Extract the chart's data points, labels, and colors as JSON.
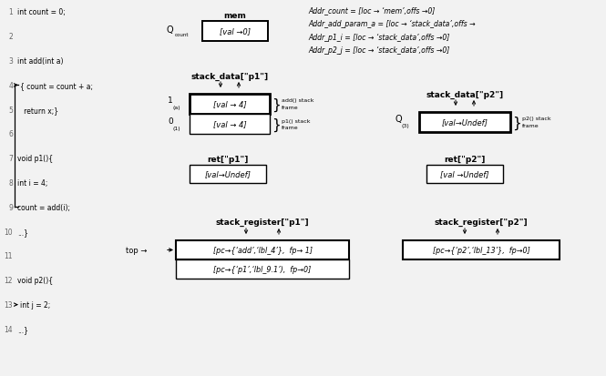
{
  "bg_color": "#f2f2f2",
  "code_lines": [
    {
      "num": "1",
      "text": "int count = 0;",
      "arrow": false
    },
    {
      "num": "2",
      "text": "",
      "arrow": false
    },
    {
      "num": "3",
      "text": "int add(int a)",
      "arrow": false
    },
    {
      "num": "4",
      "text": "{ count = count + a;",
      "arrow": true
    },
    {
      "num": "5",
      "text": "   return x;}",
      "arrow": false
    },
    {
      "num": "6",
      "text": "",
      "arrow": false
    },
    {
      "num": "7",
      "text": "void p1(){",
      "arrow": false
    },
    {
      "num": "8",
      "text": "int i = 4;",
      "arrow": false
    },
    {
      "num": "9",
      "text": "count = add(i);",
      "arrow": false
    },
    {
      "num": "10",
      "text": "...}",
      "arrow": false
    },
    {
      "num": "11",
      "text": "",
      "arrow": false
    },
    {
      "num": "12",
      "text": "void p2(){",
      "arrow": false
    },
    {
      "num": "13",
      "text": "int j = 2;",
      "arrow": true
    },
    {
      "num": "14",
      "text": "...}",
      "arrow": false
    }
  ],
  "mem_label": "mem",
  "mem_box": "[val →0]",
  "addr_lines": [
    "Addr_count = [loc → ‘mem’,offs →0]",
    "Addr_add_param_a = [loc → ‘stack_data’,offs →",
    "Addr_p1_i = [loc → ‘stack_data’,offs →0]",
    "Addr_p2_j = [loc → ‘stack_data’,offs →0]"
  ],
  "stack_p1_label": "stack_data[\"p1\"]",
  "stack_p1_row1_text": "[val → 4]",
  "stack_p1_row1_annot1": "add() stack",
  "stack_p1_row1_annot2": "frame",
  "stack_p1_row2_text": "[val → 4]",
  "stack_p1_row2_annot1": "p1() stack",
  "stack_p1_row2_annot2": "frame",
  "stack_p2_label": "stack_data[\"p2\"]",
  "stack_p2_text": "[val→Undef]",
  "stack_p2_annot1": "p2() stack",
  "stack_p2_annot2": "frame",
  "ret_p1_label": "ret[\"p1\"]",
  "ret_p1_text": "[val→Undef]",
  "ret_p2_label": "ret[\"p2\"]",
  "ret_p2_text": "[val →Undef]",
  "sreg_p1_label": "stack_register[\"p1\"]",
  "sreg_p1_row1": "[pc→{‘add’,‘lbl_4’},  fp→ 1]",
  "sreg_p1_row2": "[pc→{‘p1’,‘lbl_9.1’),  fp→0]",
  "sreg_p2_label": "stack_register[\"p2\"]",
  "sreg_p2_row1": "[pc→{‘p2’,‘lbl_13’},  fp→0]",
  "top_label": "top →"
}
